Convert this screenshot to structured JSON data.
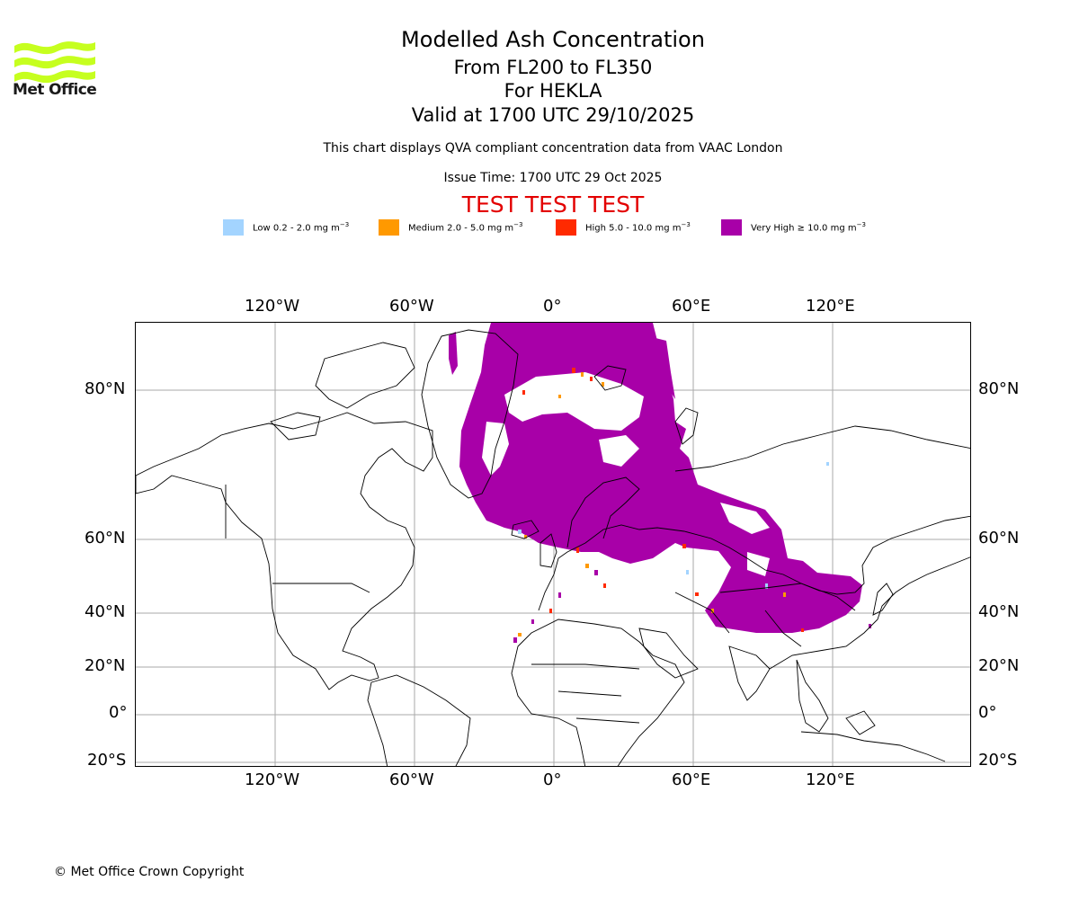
{
  "logo": {
    "text": "Met Office",
    "icon": "met-office-wave-icon",
    "color": "#c6ff1f"
  },
  "header": {
    "title": "Modelled Ash Concentration",
    "levels": "From FL200 to FL350",
    "volcano": "For HEKLA",
    "valid": "Valid at 1700 UTC 29/10/2025",
    "description": "This chart displays QVA compliant concentration data from VAAC London",
    "issue_time": "Issue Time: 1700 UTC 29 Oct 2025",
    "test_banner": "TEST TEST TEST"
  },
  "legend": [
    {
      "label": "Low 0.2 - 2.0 mg m",
      "unit_exp": "−3",
      "color": "#a3d4ff"
    },
    {
      "label": "Medium 2.0 - 5.0 mg m",
      "unit_exp": "−3",
      "color": "#ff9900"
    },
    {
      "label": "High 5.0 - 10.0 mg m",
      "unit_exp": "−3",
      "color": "#ff2a00"
    },
    {
      "label": "Very High  ≥  10.0 mg m",
      "unit_exp": "−3",
      "color": "#a800a8"
    }
  ],
  "map": {
    "lon_ticks": [
      "120°W",
      "60°W",
      "0°",
      "60°E",
      "120°E"
    ],
    "lat_ticks": [
      "80°N",
      "60°N",
      "40°N",
      "20°N",
      "0°",
      "20°S"
    ],
    "lon_values": [
      -120,
      -60,
      0,
      60,
      120
    ],
    "lat_values": [
      80,
      60,
      40,
      20,
      0,
      -20
    ]
  },
  "footer": {
    "copyright": "© Met Office Crown Copyright"
  }
}
